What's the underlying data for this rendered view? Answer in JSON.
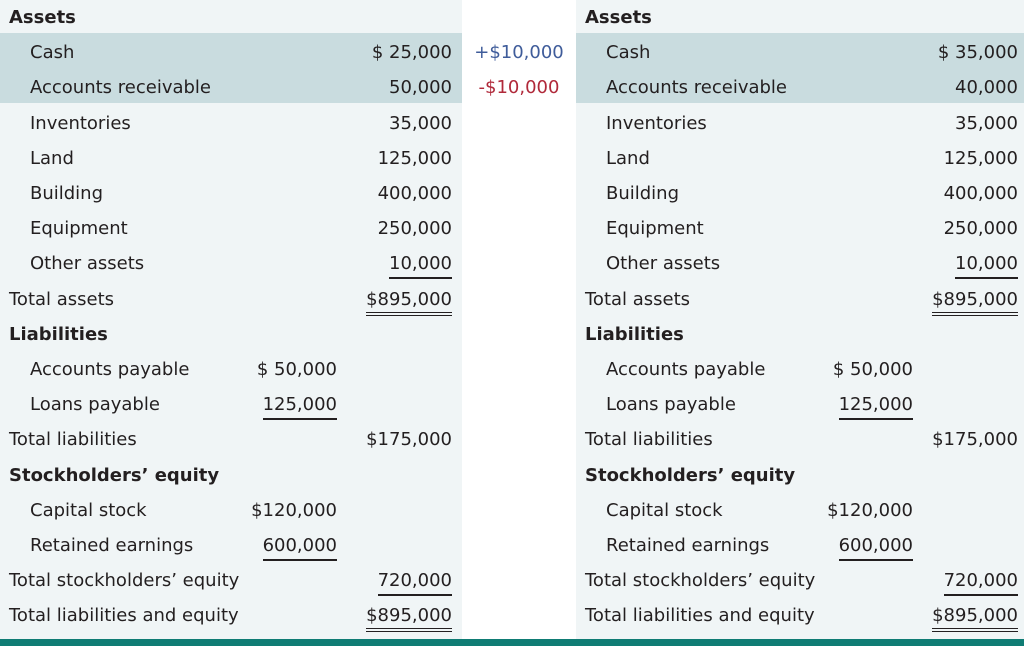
{
  "colors": {
    "panel_bg": "#f0f5f6",
    "highlight_bg": "#c9dcdf",
    "accent_bar": "#0f7c74",
    "increase": "#3f5c9a",
    "decrease": "#b0293a"
  },
  "rows": [
    {
      "label": "Assets",
      "kind": "h",
      "c1": "",
      "c2": "",
      "ul1": "",
      "ul2": ""
    },
    {
      "label": "Cash",
      "kind": "i",
      "c1": "",
      "c2": "$ 25,000",
      "ul1": "",
      "ul2": "",
      "highlight": true
    },
    {
      "label": "Accounts receivable",
      "kind": "i",
      "c1": "",
      "c2": "50,000",
      "ul1": "",
      "ul2": "",
      "highlight": true
    },
    {
      "label": "Inventories",
      "kind": "i",
      "c1": "",
      "c2": "35,000",
      "ul1": "",
      "ul2": ""
    },
    {
      "label": "Land",
      "kind": "i",
      "c1": "",
      "c2": "125,000",
      "ul1": "",
      "ul2": ""
    },
    {
      "label": "Building",
      "kind": "i",
      "c1": "",
      "c2": "400,000",
      "ul1": "",
      "ul2": ""
    },
    {
      "label": "Equipment",
      "kind": "i",
      "c1": "",
      "c2": "250,000",
      "ul1": "",
      "ul2": ""
    },
    {
      "label": "Other assets",
      "kind": "i",
      "c1": "",
      "c2": "10,000",
      "ul1": "",
      "ul2": "single"
    },
    {
      "label": "Total assets",
      "kind": "t",
      "c1": "",
      "c2": "$895,000",
      "ul1": "",
      "ul2": "double"
    },
    {
      "label": "Liabilities",
      "kind": "h",
      "c1": "",
      "c2": "",
      "ul1": "",
      "ul2": ""
    },
    {
      "label": "Accounts payable",
      "kind": "i",
      "c1": "$ 50,000",
      "c2": "",
      "ul1": "",
      "ul2": ""
    },
    {
      "label": "Loans payable",
      "kind": "i",
      "c1": "125,000",
      "c2": "",
      "ul1": "single",
      "ul2": ""
    },
    {
      "label": "Total liabilities",
      "kind": "t",
      "c1": "",
      "c2": "$175,000",
      "ul1": "",
      "ul2": ""
    },
    {
      "label": "Stockholders’ equity",
      "kind": "h",
      "c1": "",
      "c2": "",
      "ul1": "",
      "ul2": ""
    },
    {
      "label": "Capital stock",
      "kind": "i",
      "c1": "$120,000",
      "c2": "",
      "ul1": "",
      "ul2": ""
    },
    {
      "label": "Retained earnings",
      "kind": "i",
      "c1": "600,000",
      "c2": "",
      "ul1": "single",
      "ul2": ""
    },
    {
      "label": "Total stockholders’ equity",
      "kind": "t",
      "c1": "",
      "c2": "720,000",
      "ul1": "",
      "ul2": "single"
    },
    {
      "label": "Total liabilities and equity",
      "kind": "t",
      "c1": "",
      "c2": "$895,000",
      "ul1": "",
      "ul2": "double"
    }
  ],
  "after_values": {
    "1": "$ 35,000",
    "2": "40,000"
  },
  "changes": [
    {
      "row": 1,
      "text": "+$10,000",
      "type": "increase"
    },
    {
      "row": 2,
      "text": "-$10,000",
      "type": "decrease"
    }
  ]
}
